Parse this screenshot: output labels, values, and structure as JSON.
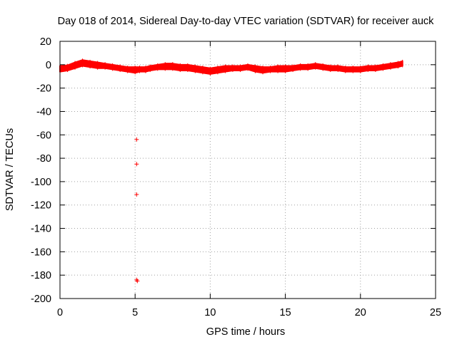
{
  "chart_data": {
    "type": "scatter",
    "title": "Day 018 of 2014, Sidereal Day-to-day VTEC variation (SDTVAR) for receiver auck",
    "xlabel": "GPS time / hours",
    "ylabel": "SDTVAR / TECUs",
    "xlim": [
      0,
      25
    ],
    "ylim": [
      -200,
      20
    ],
    "xticks": [
      0,
      5,
      10,
      15,
      20,
      25
    ],
    "yticks": [
      20,
      0,
      -20,
      -40,
      -60,
      -80,
      -100,
      -120,
      -140,
      -160,
      -180,
      -200
    ],
    "grid": true,
    "marker": "+",
    "series_color": "#ff0000",
    "series": [
      {
        "name": "SDTVAR",
        "band": {
          "x": [
            0,
            0.5,
            1.0,
            1.5,
            2.0,
            2.5,
            3.0,
            3.5,
            4.0,
            4.5,
            5.0,
            5.3,
            5.7,
            6.0,
            6.5,
            7.0,
            7.5,
            8.0,
            8.5,
            9.0,
            9.5,
            10.0,
            10.5,
            11.0,
            11.5,
            12.0,
            12.5,
            13.0,
            13.5,
            14.0,
            14.5,
            15.0,
            15.5,
            16.0,
            16.5,
            17.0,
            17.5,
            18.0,
            18.5,
            19.0,
            19.5,
            20.0,
            20.5,
            21.0,
            21.5,
            22.0,
            22.5,
            22.8
          ],
          "upper": [
            -1,
            -0.5,
            2,
            4,
            3,
            2,
            1,
            0,
            -1,
            -2,
            -2,
            -2,
            -2,
            -1,
            0,
            1,
            1,
            0,
            0,
            -1,
            -2,
            -3,
            -2,
            -1,
            -1,
            -1,
            0,
            -1,
            -2,
            -2,
            -1,
            -1,
            -1,
            0,
            0,
            1,
            0,
            -1,
            -1,
            -2,
            -2,
            -2,
            -1,
            -1,
            0,
            1,
            2,
            3
          ],
          "lower": [
            -6,
            -5,
            -3,
            -1,
            -2,
            -3,
            -3,
            -4,
            -5,
            -6,
            -7,
            -6,
            -6,
            -5,
            -4,
            -4,
            -4,
            -5,
            -5,
            -6,
            -7,
            -8,
            -7,
            -6,
            -5,
            -5,
            -4,
            -6,
            -7,
            -6,
            -6,
            -6,
            -5,
            -4,
            -4,
            -3,
            -4,
            -5,
            -5,
            -6,
            -6,
            -6,
            -5,
            -5,
            -4,
            -3,
            -2,
            -1
          ]
        },
        "outliers": [
          {
            "x": 5.1,
            "y": -64
          },
          {
            "x": 5.1,
            "y": -85
          },
          {
            "x": 5.1,
            "y": -111
          },
          {
            "x": 5.1,
            "y": -184
          },
          {
            "x": 5.15,
            "y": -185
          }
        ]
      }
    ]
  }
}
